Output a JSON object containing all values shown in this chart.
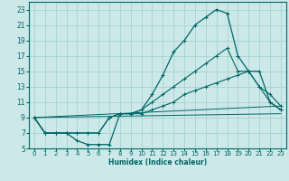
{
  "xlabel": "Humidex (Indice chaleur)",
  "xlim": [
    -0.5,
    23.5
  ],
  "ylim": [
    5,
    24
  ],
  "xticks": [
    0,
    1,
    2,
    3,
    4,
    5,
    6,
    7,
    8,
    9,
    10,
    11,
    12,
    13,
    14,
    15,
    16,
    17,
    18,
    19,
    20,
    21,
    22,
    23
  ],
  "yticks": [
    5,
    7,
    9,
    11,
    13,
    15,
    17,
    19,
    21,
    23
  ],
  "bg_color": "#cce8e8",
  "grid_color": "#9fcfcf",
  "line_color": "#006666",
  "line1_x": [
    0,
    1,
    2,
    3,
    4,
    5,
    6,
    7,
    8,
    9,
    10,
    11,
    12,
    13,
    14,
    15,
    16,
    17,
    18,
    19,
    20,
    21,
    22,
    23
  ],
  "line1_y": [
    9,
    7,
    7,
    7,
    6,
    5.5,
    5.5,
    5.5,
    9.5,
    9.5,
    10,
    12,
    14.5,
    17.5,
    19,
    21,
    22,
    23,
    22.5,
    17,
    15,
    15,
    11,
    10
  ],
  "line2_x": [
    0,
    1,
    2,
    3,
    4,
    5,
    6,
    7,
    8,
    9,
    10,
    11,
    12,
    13,
    14,
    15,
    16,
    17,
    18,
    19,
    20,
    21,
    22,
    23
  ],
  "line2_y": [
    9,
    7,
    7,
    7,
    7,
    7,
    7,
    9,
    9.5,
    9.5,
    9.5,
    10,
    10.5,
    11,
    12,
    12.5,
    13,
    13.5,
    14,
    14.5,
    15,
    13,
    12,
    10.5
  ],
  "line3_x": [
    0,
    23
  ],
  "line3_y": [
    9,
    10.5
  ],
  "line4_x": [
    0,
    23
  ],
  "line4_y": [
    9,
    9.5
  ],
  "line5_x": [
    0,
    1,
    2,
    3,
    4,
    5,
    6,
    7,
    8,
    9,
    10,
    11,
    12,
    13,
    14,
    15,
    16,
    17,
    18,
    19,
    20,
    21,
    22,
    23
  ],
  "line5_y": [
    9,
    7,
    7,
    7,
    7,
    7,
    7,
    9,
    9.5,
    9.5,
    10,
    11,
    12,
    13,
    14,
    15,
    16,
    17,
    18,
    15,
    15,
    13,
    11,
    10
  ]
}
